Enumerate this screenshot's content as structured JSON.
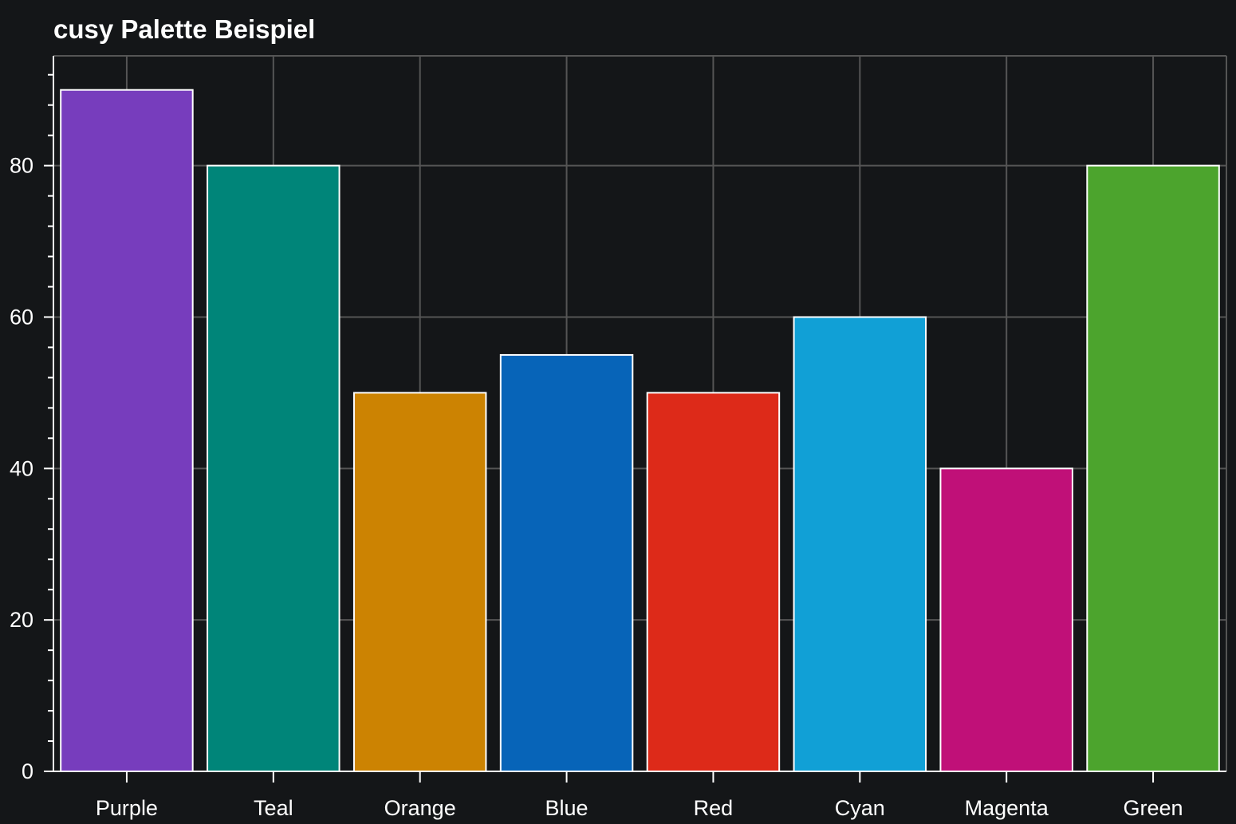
{
  "chart_data": {
    "type": "bar",
    "title": "cusy Palette Beispiel",
    "xlabel": "",
    "ylabel": "",
    "categories": [
      "Purple",
      "Teal",
      "Orange",
      "Blue",
      "Red",
      "Cyan",
      "Magenta",
      "Green"
    ],
    "values": [
      90,
      80,
      50,
      55,
      50,
      60,
      40,
      80
    ],
    "colors": [
      "#773dbd",
      "#008579",
      "#cc8302",
      "#0764b8",
      "#dd2a19",
      "#11a0d6",
      "#c01078",
      "#4ca42d"
    ],
    "ylim": [
      0,
      94.5
    ],
    "yticks": [
      0,
      20,
      40,
      60,
      80
    ],
    "grid": true,
    "legend": "none",
    "style": {
      "background": "#141618",
      "grid_color": "#555555",
      "bar_edge_color": "#ffffff",
      "text_color": "#ffffff"
    }
  }
}
